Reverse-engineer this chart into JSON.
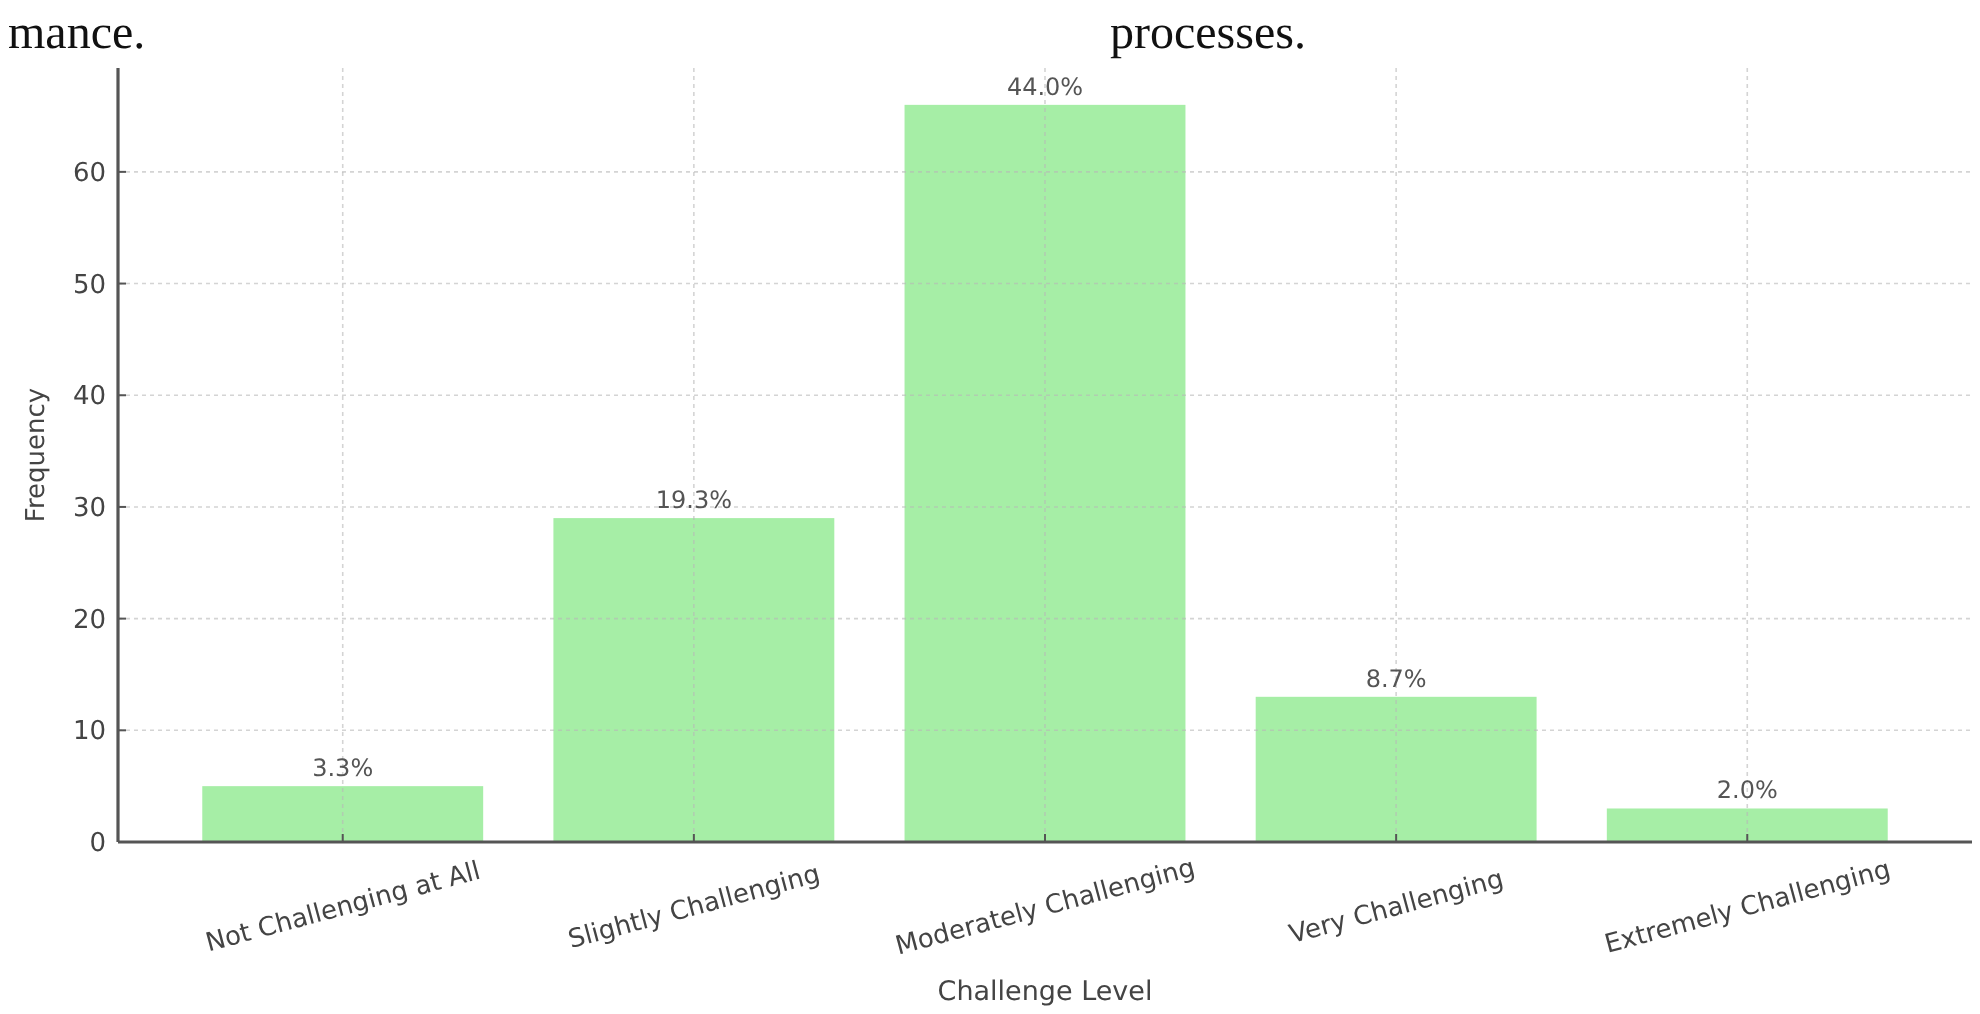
{
  "chart_data": {
    "type": "bar",
    "annotations": [
      "mance.",
      "processes.",
      {
        "text": "3.3%",
        "x": "Not Challenging at All",
        "y": 5
      },
      {
        "text": "19.3%",
        "x": "Slightly Challenging",
        "y": 29
      },
      {
        "text": "44.0%",
        "x": "Moderately Challenging",
        "y": 66
      },
      {
        "text": "8.7%",
        "x": "Very Challenging",
        "y": 13
      },
      {
        "text": "2.0%",
        "x": "Extremely Challenging",
        "y": 3
      }
    ],
    "categories": [
      "Not Challenging at All",
      "Slightly Challenging",
      "Moderately Challenging",
      "Very Challenging",
      "Extremely Challenging"
    ],
    "values": [
      5,
      29,
      66,
      13,
      3
    ],
    "color": "#a6eea6",
    "xlabel": "Challenge Level",
    "ylabel": "Frequency",
    "ylim": [
      0,
      69.3
    ],
    "yticks": [
      0,
      10,
      20,
      30,
      40,
      50,
      60
    ],
    "grid": true
  }
}
